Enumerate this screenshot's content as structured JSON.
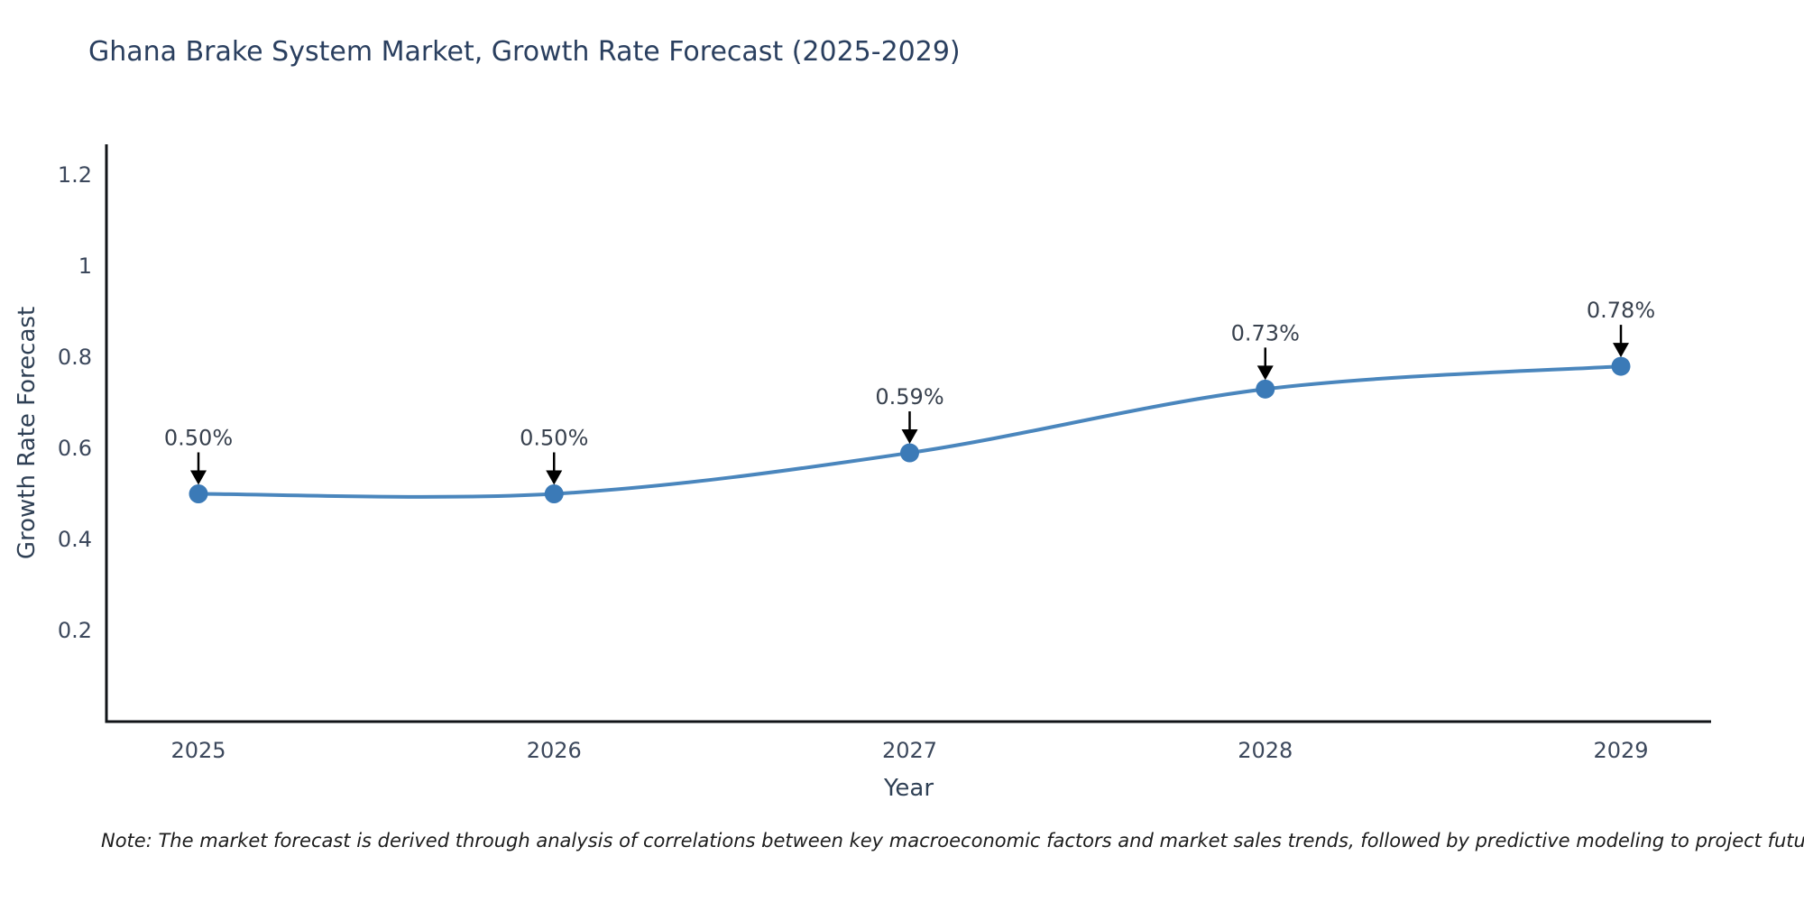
{
  "page": {
    "title": "Ghana Brake System Market, Growth Rate Forecast (2025-2029)"
  },
  "chart_data": {
    "type": "line",
    "title": "Ghana Brake System Market, Growth Rate Forecast (2025-2029)",
    "x": [
      2025,
      2026,
      2027,
      2028,
      2029
    ],
    "x_labels": [
      "2025",
      "2026",
      "2027",
      "2028",
      "2029"
    ],
    "series": [
      {
        "name": "Growth Rate Forecast",
        "values": [
          0.5,
          0.5,
          0.59,
          0.73,
          0.78
        ]
      }
    ],
    "point_labels": [
      "0.50%",
      "0.50%",
      "0.59%",
      "0.73%",
      "0.78%"
    ],
    "xlabel": "Year",
    "ylabel": "Growth Rate Forecast",
    "yticks": [
      0.2,
      0.4,
      0.6,
      0.8,
      1,
      1.2
    ],
    "ytick_labels": [
      "0.2",
      "0.4",
      "0.6",
      "0.8",
      "1",
      "1.2"
    ],
    "ylim": [
      0,
      1.27
    ],
    "grid": false,
    "legend": "none",
    "smooth": true,
    "line_color": "#4a86bd",
    "marker_color": "#3b7ab7",
    "annotation_arrow_color": "#000000",
    "axis_color": "#111418"
  },
  "note": {
    "text": "Note: The market forecast is derived through analysis of correlations between key macroeconomic factors and market sales trends, followed by predictive modeling to project future sales"
  }
}
